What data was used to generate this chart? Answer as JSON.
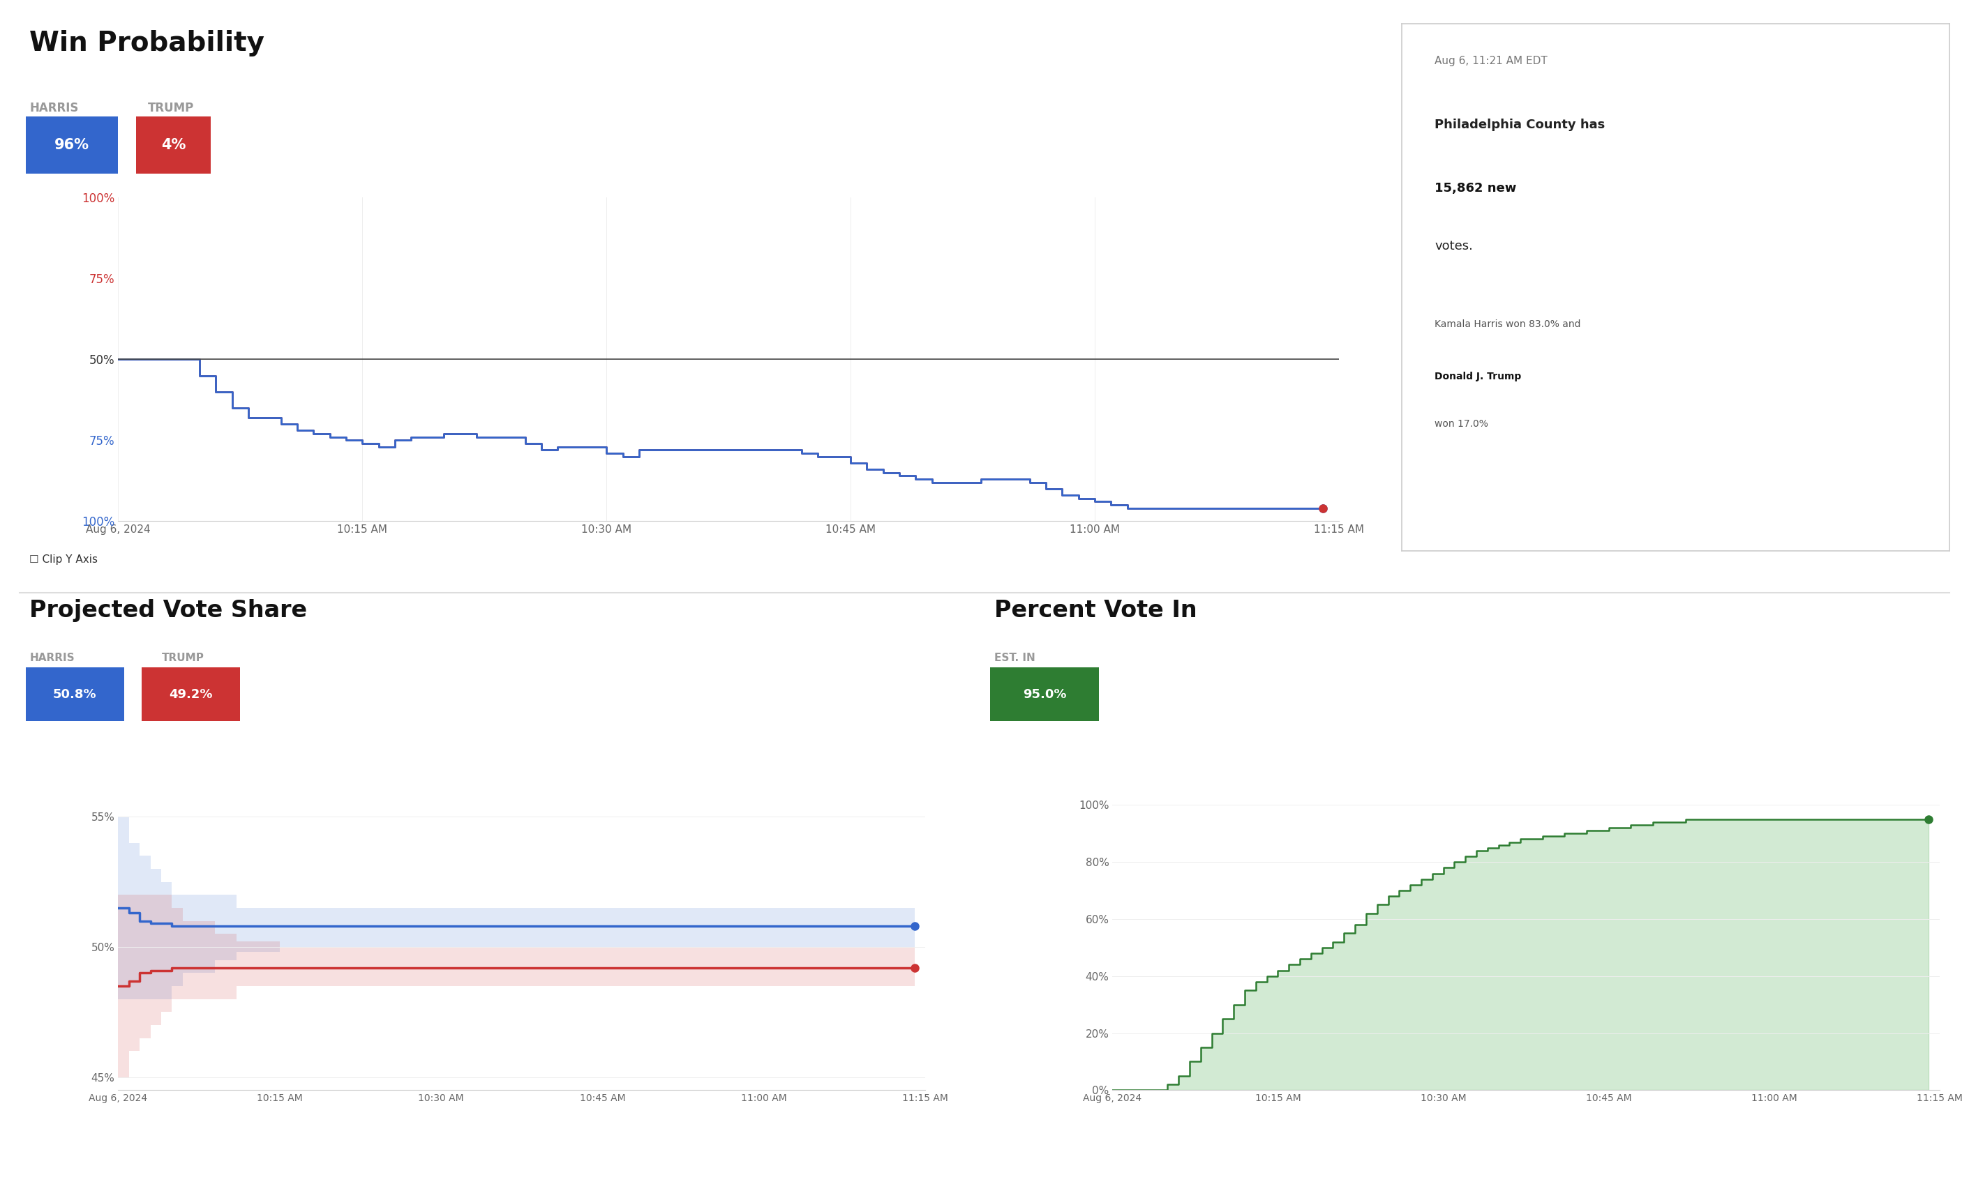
{
  "title_win_prob": "Win Probability",
  "title_vote_share": "Projected Vote Share",
  "title_pct_vote": "Percent Vote In",
  "harris_label": "HARRIS",
  "trump_label": "TRUMP",
  "harris_win_pct": "96%",
  "trump_win_pct": "4%",
  "harris_vote_share": "50.8%",
  "trump_vote_share": "49.2%",
  "pct_vote_in": "95.0%",
  "harris_color": "#3366CC",
  "trump_color": "#CC3333",
  "green_color": "#2E7D32",
  "green_fill": "#4CAF50",
  "clip_y_axis_label": "Clip Y Axis",
  "est_in_label": "EST. IN",
  "annotation_time": "Aug 6, 11:21 AM EDT",
  "annotation_county": "Philadelphia County",
  "annotation_new_votes": "15,862",
  "annotation_harris_pct": "83.0%",
  "annotation_trump_pct": "17.0%",
  "annotation_harris_name": "Kamala Harris",
  "annotation_trump_name": "Donald J. Trump",
  "time_labels": [
    "Aug 6, 2024",
    "10:15 AM",
    "10:30 AM",
    "10:45 AM",
    "11:00 AM",
    "11:15 AM"
  ],
  "background_color": "#FFFFFF",
  "win_prob_harris": [
    50,
    50,
    50,
    50,
    50,
    55,
    60,
    65,
    68,
    68,
    70,
    72,
    73,
    74,
    75,
    76,
    77,
    75,
    74,
    74,
    73,
    73,
    74,
    74,
    74,
    76,
    78,
    77,
    77,
    77,
    79,
    80,
    78,
    78,
    78,
    78,
    78,
    78,
    78,
    78,
    78,
    78,
    79,
    80,
    80,
    82,
    84,
    85,
    86,
    87,
    88,
    88,
    88,
    87,
    87,
    87,
    88,
    90,
    92,
    93,
    94,
    95,
    96,
    96,
    96,
    96,
    96,
    96,
    96,
    96,
    96,
    96,
    96,
    96,
    96
  ],
  "win_prob_trump": [
    50,
    50,
    50,
    50,
    50,
    45,
    40,
    35,
    32,
    32,
    30,
    28,
    27,
    26,
    25,
    24,
    23,
    25,
    26,
    26,
    27,
    27,
    26,
    26,
    26,
    24,
    22,
    23,
    23,
    23,
    21,
    20,
    22,
    22,
    22,
    22,
    22,
    22,
    22,
    22,
    22,
    22,
    21,
    20,
    20,
    18,
    16,
    15,
    14,
    13,
    12,
    12,
    12,
    13,
    13,
    13,
    12,
    10,
    8,
    7,
    6,
    5,
    4,
    4,
    4,
    4,
    4,
    4,
    4,
    4,
    4,
    4,
    4,
    4,
    4
  ],
  "win_prob_x": [
    0,
    1,
    2,
    3,
    4,
    5,
    6,
    7,
    8,
    9,
    10,
    11,
    12,
    13,
    14,
    15,
    16,
    17,
    18,
    19,
    20,
    21,
    22,
    23,
    24,
    25,
    26,
    27,
    28,
    29,
    30,
    31,
    32,
    33,
    34,
    35,
    36,
    37,
    38,
    39,
    40,
    41,
    42,
    43,
    44,
    45,
    46,
    47,
    48,
    49,
    50,
    51,
    52,
    53,
    54,
    55,
    56,
    57,
    58,
    59,
    60,
    61,
    62,
    63,
    64,
    65,
    66,
    67,
    68,
    69,
    70,
    71,
    72,
    73,
    74
  ],
  "vote_share_harris": [
    51.5,
    51.3,
    51.0,
    50.9,
    50.9,
    50.8,
    50.8,
    50.8,
    50.8,
    50.8,
    50.8,
    50.8,
    50.8,
    50.8,
    50.8,
    50.8,
    50.8,
    50.8,
    50.8,
    50.8,
    50.8,
    50.8,
    50.8,
    50.8,
    50.8,
    50.8,
    50.8,
    50.8,
    50.8,
    50.8,
    50.8,
    50.8,
    50.8,
    50.8,
    50.8,
    50.8,
    50.8,
    50.8,
    50.8,
    50.8,
    50.8,
    50.8,
    50.8,
    50.8,
    50.8,
    50.8,
    50.8,
    50.8,
    50.8,
    50.8,
    50.8,
    50.8,
    50.8,
    50.8,
    50.8,
    50.8,
    50.8,
    50.8,
    50.8,
    50.8,
    50.8,
    50.8,
    50.8,
    50.8,
    50.8,
    50.8,
    50.8,
    50.8,
    50.8,
    50.8,
    50.8,
    50.8,
    50.8,
    50.8,
    50.8
  ],
  "vote_share_trump": [
    48.5,
    48.7,
    49.0,
    49.1,
    49.1,
    49.2,
    49.2,
    49.2,
    49.2,
    49.2,
    49.2,
    49.2,
    49.2,
    49.2,
    49.2,
    49.2,
    49.2,
    49.2,
    49.2,
    49.2,
    49.2,
    49.2,
    49.2,
    49.2,
    49.2,
    49.2,
    49.2,
    49.2,
    49.2,
    49.2,
    49.2,
    49.2,
    49.2,
    49.2,
    49.2,
    49.2,
    49.2,
    49.2,
    49.2,
    49.2,
    49.2,
    49.2,
    49.2,
    49.2,
    49.2,
    49.2,
    49.2,
    49.2,
    49.2,
    49.2,
    49.2,
    49.2,
    49.2,
    49.2,
    49.2,
    49.2,
    49.2,
    49.2,
    49.2,
    49.2,
    49.2,
    49.2,
    49.2,
    49.2,
    49.2,
    49.2,
    49.2,
    49.2,
    49.2,
    49.2,
    49.2,
    49.2,
    49.2,
    49.2,
    49.2
  ],
  "vote_share_harris_upper": [
    55,
    54,
    53.5,
    53,
    52.5,
    52,
    52,
    52,
    52,
    52,
    52,
    51.5,
    51.5,
    51.5,
    51.5,
    51.5,
    51.5,
    51.5,
    51.5,
    51.5,
    51.5,
    51.5,
    51.5,
    51.5,
    51.5,
    51.5,
    51.5,
    51.5,
    51.5,
    51.5,
    51.5,
    51.5,
    51.5,
    51.5,
    51.5,
    51.5,
    51.5,
    51.5,
    51.5,
    51.5,
    51.5,
    51.5,
    51.5,
    51.5,
    51.5,
    51.5,
    51.5,
    51.5,
    51.5,
    51.5,
    51.5,
    51.5,
    51.5,
    51.5,
    51.5,
    51.5,
    51.5,
    51.5,
    51.5,
    51.5,
    51.5,
    51.5,
    51.5,
    51.5,
    51.5,
    51.5,
    51.5,
    51.5,
    51.5,
    51.5,
    51.5,
    51.5,
    51.5,
    51.5,
    51.5
  ],
  "vote_share_harris_lower": [
    48,
    48,
    48,
    48,
    48,
    48.5,
    49,
    49,
    49,
    49.5,
    49.5,
    49.8,
    49.8,
    49.8,
    49.8,
    50,
    50,
    50,
    50,
    50,
    50,
    50,
    50,
    50,
    50,
    50,
    50,
    50,
    50,
    50,
    50,
    50,
    50,
    50,
    50,
    50,
    50,
    50,
    50,
    50,
    50,
    50,
    50,
    50,
    50,
    50,
    50,
    50,
    50,
    50,
    50,
    50,
    50,
    50,
    50,
    50,
    50,
    50,
    50,
    50,
    50,
    50,
    50,
    50,
    50,
    50,
    50,
    50,
    50,
    50,
    50,
    50,
    50,
    50,
    50
  ],
  "vote_share_trump_upper": [
    52,
    52,
    52,
    52,
    52,
    51.5,
    51,
    51,
    51,
    50.5,
    50.5,
    50.2,
    50.2,
    50.2,
    50.2,
    50,
    50,
    50,
    50,
    50,
    50,
    50,
    50,
    50,
    50,
    50,
    50,
    50,
    50,
    50,
    50,
    50,
    50,
    50,
    50,
    50,
    50,
    50,
    50,
    50,
    50,
    50,
    50,
    50,
    50,
    50,
    50,
    50,
    50,
    50,
    50,
    50,
    50,
    50,
    50,
    50,
    50,
    50,
    50,
    50,
    50,
    50,
    50,
    50,
    50,
    50,
    50,
    50,
    50,
    50,
    50,
    50,
    50,
    50,
    50
  ],
  "vote_share_trump_lower": [
    45,
    46,
    46.5,
    47,
    47.5,
    48,
    48,
    48,
    48,
    48,
    48,
    48.5,
    48.5,
    48.5,
    48.5,
    48.5,
    48.5,
    48.5,
    48.5,
    48.5,
    48.5,
    48.5,
    48.5,
    48.5,
    48.5,
    48.5,
    48.5,
    48.5,
    48.5,
    48.5,
    48.5,
    48.5,
    48.5,
    48.5,
    48.5,
    48.5,
    48.5,
    48.5,
    48.5,
    48.5,
    48.5,
    48.5,
    48.5,
    48.5,
    48.5,
    48.5,
    48.5,
    48.5,
    48.5,
    48.5,
    48.5,
    48.5,
    48.5,
    48.5,
    48.5,
    48.5,
    48.5,
    48.5,
    48.5,
    48.5,
    48.5,
    48.5,
    48.5,
    48.5,
    48.5,
    48.5,
    48.5,
    48.5,
    48.5,
    48.5,
    48.5,
    48.5,
    48.5,
    48.5,
    48.5
  ],
  "pct_vote_in_values": [
    0,
    0,
    0,
    0,
    0,
    2,
    5,
    10,
    15,
    20,
    25,
    30,
    35,
    38,
    40,
    42,
    44,
    46,
    48,
    50,
    52,
    55,
    58,
    62,
    65,
    68,
    70,
    72,
    74,
    76,
    78,
    80,
    82,
    84,
    85,
    86,
    87,
    88,
    88,
    89,
    89,
    90,
    90,
    91,
    91,
    92,
    92,
    93,
    93,
    94,
    94,
    94,
    95,
    95,
    95,
    95,
    95,
    95,
    95,
    95,
    95,
    95,
    95,
    95,
    95,
    95,
    95,
    95,
    95,
    95,
    95,
    95,
    95,
    95,
    95
  ]
}
